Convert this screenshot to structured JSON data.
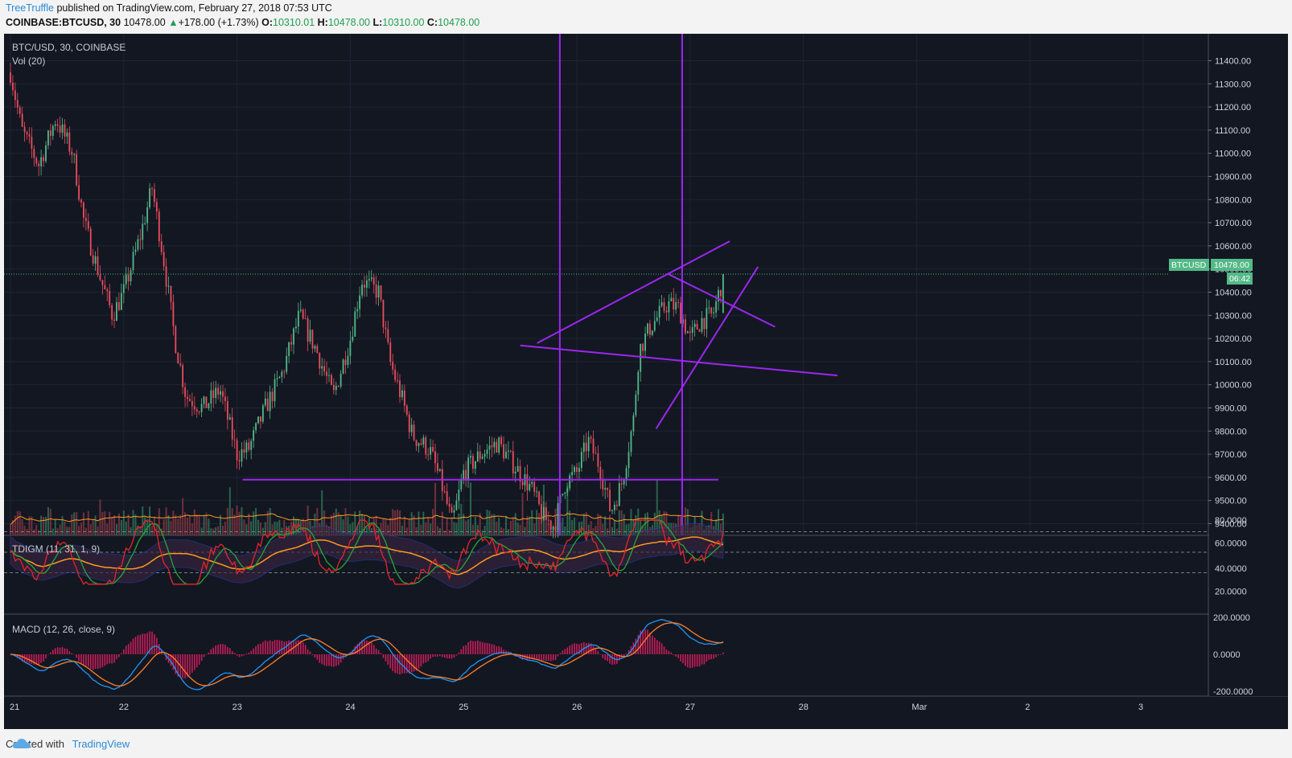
{
  "header": {
    "author": "TreeTruffle",
    "published_text": "published on TradingView.com, February 27, 2018 07:53 UTC",
    "symbol": "COINBASE:BTCUSD, 30",
    "last": "10478.00",
    "change": "+178.00 (+1.73%)",
    "o_label": "O:",
    "o_value": "10310.01",
    "h_label": "H:",
    "h_value": "10478.00",
    "l_label": "L:",
    "l_value": "10310.00",
    "c_label": "C:",
    "c_value": "10478.00"
  },
  "panes": {
    "price_title": "BTC/USD, 30, COINBASE",
    "vol_title": "Vol (20)",
    "tdi_title": "TDIGM (11, 31, 1, 9)",
    "macd_title": "MACD (12, 26, close, 9)"
  },
  "price_tag": {
    "symbol": "BTCUSD",
    "value": "10478.00",
    "countdown": "06:42"
  },
  "footer": {
    "created_with": "Created with",
    "brand": "TradingView"
  },
  "colors": {
    "background": "#131722",
    "up": "#53b987",
    "down": "#eb4d5c",
    "drawing": "#9c27f0",
    "macd_line": "#2196f3",
    "signal_line": "#ff7f27",
    "tdi_rsi": "#e3262a",
    "tdi_signal": "#27a637",
    "tdi_base": "#ff9a1f"
  },
  "chart_data": {
    "type": "candlestick",
    "symbol": "BTC/USD",
    "interval": "30",
    "exchange": "COINBASE",
    "x_ticks": [
      "21",
      "22",
      "23",
      "24",
      "25",
      "26",
      "27",
      "28",
      "Mar",
      "2",
      "3"
    ],
    "price_ticks": [
      "11400.00",
      "11300.00",
      "11200.00",
      "11100.00",
      "11000.00",
      "10900.00",
      "10800.00",
      "10700.00",
      "10600.00",
      "10500.00",
      "10400.00",
      "10300.00",
      "10200.00",
      "10100.00",
      "10000.00",
      "9900.00",
      "9800.00",
      "9700.00",
      "9600.00",
      "9500.00",
      "9400.00"
    ],
    "ylim": [
      9320,
      11480
    ],
    "approx_close_path": [
      {
        "day": 21.0,
        "close": 11350
      },
      {
        "day": 21.1,
        "close": 11100
      },
      {
        "day": 21.25,
        "close": 10950
      },
      {
        "day": 21.4,
        "close": 11150
      },
      {
        "day": 21.55,
        "close": 11000
      },
      {
        "day": 21.65,
        "close": 10700
      },
      {
        "day": 21.8,
        "close": 10450
      },
      {
        "day": 21.9,
        "close": 10300
      },
      {
        "day": 22.0,
        "close": 10400
      },
      {
        "day": 22.15,
        "close": 10650
      },
      {
        "day": 22.25,
        "close": 10850
      },
      {
        "day": 22.35,
        "close": 10550
      },
      {
        "day": 22.45,
        "close": 10200
      },
      {
        "day": 22.55,
        "close": 9950
      },
      {
        "day": 22.7,
        "close": 9900
      },
      {
        "day": 22.85,
        "close": 9980
      },
      {
        "day": 23.0,
        "close": 9700
      },
      {
        "day": 23.1,
        "close": 9720
      },
      {
        "day": 23.25,
        "close": 9900
      },
      {
        "day": 23.4,
        "close": 10050
      },
      {
        "day": 23.55,
        "close": 10300
      },
      {
        "day": 23.7,
        "close": 10150
      },
      {
        "day": 23.85,
        "close": 9950
      },
      {
        "day": 24.0,
        "close": 10200
      },
      {
        "day": 24.1,
        "close": 10450
      },
      {
        "day": 24.25,
        "close": 10400
      },
      {
        "day": 24.35,
        "close": 10100
      },
      {
        "day": 24.45,
        "close": 9950
      },
      {
        "day": 24.55,
        "close": 9780
      },
      {
        "day": 24.7,
        "close": 9720
      },
      {
        "day": 24.8,
        "close": 9580
      },
      {
        "day": 24.9,
        "close": 9400
      },
      {
        "day": 25.0,
        "close": 9620
      },
      {
        "day": 25.15,
        "close": 9700
      },
      {
        "day": 25.3,
        "close": 9750
      },
      {
        "day": 25.45,
        "close": 9650
      },
      {
        "day": 25.6,
        "close": 9550
      },
      {
        "day": 25.7,
        "close": 9430
      },
      {
        "day": 25.8,
        "close": 9390
      },
      {
        "day": 25.9,
        "close": 9580
      },
      {
        "day": 26.0,
        "close": 9620
      },
      {
        "day": 26.1,
        "close": 9760
      },
      {
        "day": 26.2,
        "close": 9650
      },
      {
        "day": 26.3,
        "close": 9450
      },
      {
        "day": 26.4,
        "close": 9580
      },
      {
        "day": 26.5,
        "close": 9850
      },
      {
        "day": 26.55,
        "close": 10150
      },
      {
        "day": 26.65,
        "close": 10250
      },
      {
        "day": 26.8,
        "close": 10350
      },
      {
        "day": 26.9,
        "close": 10330
      },
      {
        "day": 27.0,
        "close": 10200
      },
      {
        "day": 27.1,
        "close": 10280
      },
      {
        "day": 27.2,
        "close": 10300
      },
      {
        "day": 27.3,
        "close": 10478
      }
    ],
    "tdi_ticks": [
      "80.0000",
      "60.0000",
      "40.0000",
      "20.0000"
    ],
    "tdi_levels": [
      68,
      50,
      32
    ],
    "macd_ticks": [
      "200.0000",
      "0.0000",
      "-200.0000"
    ],
    "drawings": [
      {
        "kind": "vertical_line",
        "day": 25.85
      },
      {
        "kind": "vertical_line",
        "day": 26.93
      },
      {
        "kind": "horizontal_segment",
        "from_day": 23.05,
        "to_day": 27.25,
        "price": 9590
      },
      {
        "kind": "trendline",
        "points": [
          [
            25.65,
            10180
          ],
          [
            27.35,
            10620
          ]
        ]
      },
      {
        "kind": "trendline",
        "points": [
          [
            26.8,
            10480
          ],
          [
            27.75,
            10250
          ]
        ]
      },
      {
        "kind": "trendline",
        "points": [
          [
            26.7,
            9810
          ],
          [
            27.6,
            10510
          ]
        ]
      },
      {
        "kind": "trendline",
        "points": [
          [
            25.5,
            10170
          ],
          [
            28.3,
            10040
          ]
        ]
      }
    ]
  }
}
